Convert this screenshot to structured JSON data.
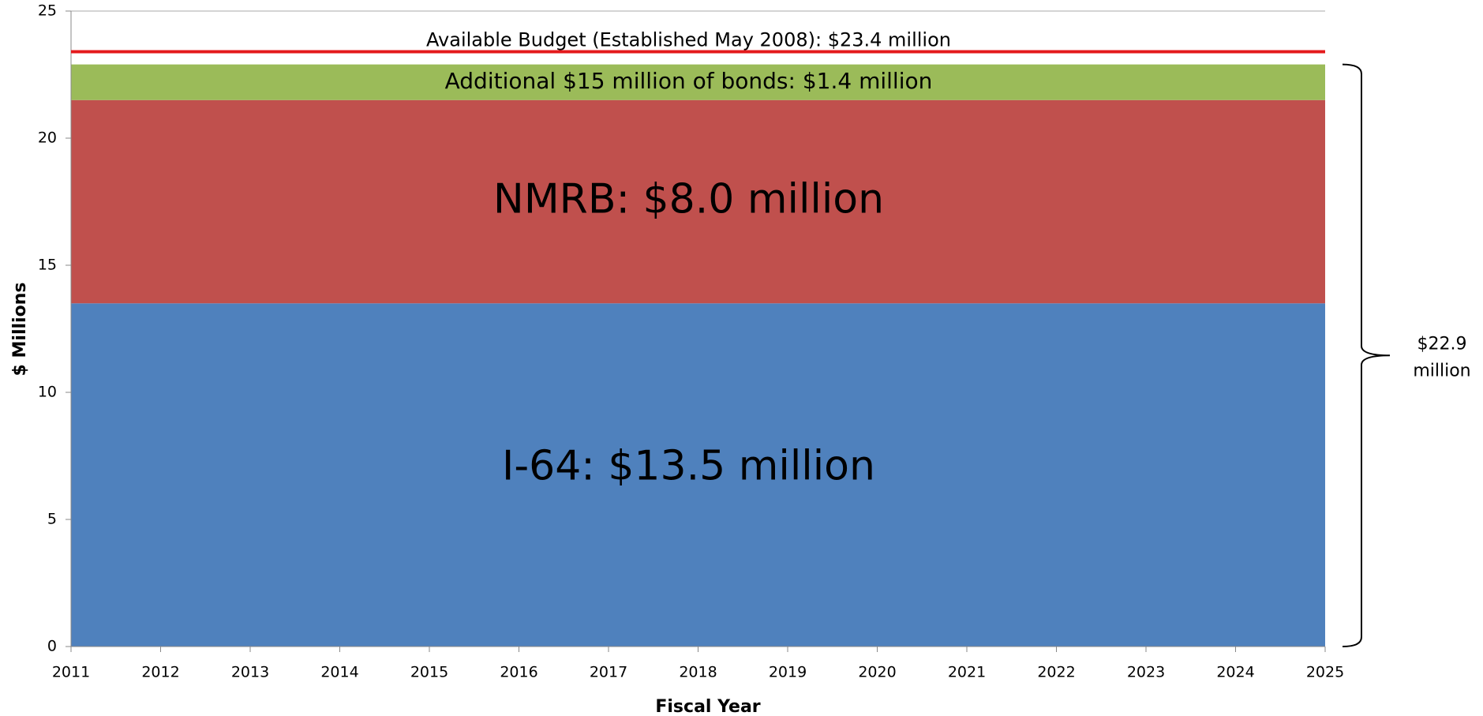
{
  "chart_data": {
    "type": "stacked_area",
    "x_label": "Fiscal Year",
    "y_label": "$ Millions",
    "x": [
      2011,
      2012,
      2013,
      2014,
      2015,
      2016,
      2017,
      2018,
      2019,
      2020,
      2021,
      2022,
      2023,
      2024,
      2025
    ],
    "xlim": [
      2011,
      2025
    ],
    "xticks": [
      2011,
      2012,
      2013,
      2014,
      2015,
      2016,
      2017,
      2018,
      2019,
      2020,
      2021,
      2022,
      2023,
      2024,
      2025
    ],
    "ylim": [
      0,
      25
    ],
    "yticks": [
      0,
      5,
      10,
      15,
      20,
      25
    ],
    "series": [
      {
        "name": "I-64: $13.5 million",
        "color": "#4f81bd",
        "values": [
          13.5,
          13.5,
          13.5,
          13.5,
          13.5,
          13.5,
          13.5,
          13.5,
          13.5,
          13.5,
          13.5,
          13.5,
          13.5,
          13.5,
          13.5
        ]
      },
      {
        "name": "NMRB: $8.0 million",
        "color": "#c0504d",
        "values": [
          8.0,
          8.0,
          8.0,
          8.0,
          8.0,
          8.0,
          8.0,
          8.0,
          8.0,
          8.0,
          8.0,
          8.0,
          8.0,
          8.0,
          8.0
        ]
      },
      {
        "name": "Additional $15 million of bonds: $1.4 million",
        "color": "#9bbb59",
        "values": [
          1.4,
          1.4,
          1.4,
          1.4,
          1.4,
          1.4,
          1.4,
          1.4,
          1.4,
          1.4,
          1.4,
          1.4,
          1.4,
          1.4,
          1.4
        ]
      }
    ],
    "reference_line": {
      "value": 23.4,
      "label": "Available Budget (Established May 2008): $23.4 million",
      "color": "#e41a1c"
    },
    "brace_label": [
      "$22.9",
      "million"
    ]
  }
}
